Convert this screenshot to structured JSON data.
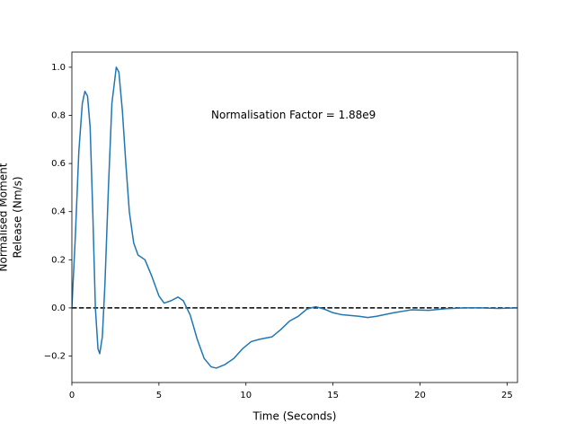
{
  "chart_data": {
    "type": "line",
    "x_label": "Time (Seconds)",
    "y_label": [
      "Normalised Moment",
      "Release (Nm/s)"
    ],
    "annotation": {
      "text": "Normalisation Factor = 1.88e9",
      "x": 8,
      "y": 0.8
    },
    "hline": {
      "y": 0,
      "color": "#000000",
      "style": "dashed"
    },
    "xlim": [
      0,
      25.6
    ],
    "ylim": [
      -0.31,
      1.063
    ],
    "xticks": [
      0,
      5,
      10,
      15,
      20,
      25
    ],
    "yticks": [
      {
        "value": -0.2,
        "label": "−0.2"
      },
      {
        "value": 0,
        "label": "0.0"
      },
      {
        "value": 0.2,
        "label": "0.2"
      },
      {
        "value": 0.4,
        "label": "0.4"
      },
      {
        "value": 0.6,
        "label": "0.6"
      },
      {
        "value": 0.8,
        "label": "0.8"
      },
      {
        "value": 1.0,
        "label": "1.0"
      }
    ],
    "series": [
      {
        "color": "#1f77b4",
        "x": [
          0,
          0.2,
          0.4,
          0.6,
          0.75,
          0.9,
          1.05,
          1.2,
          1.35,
          1.5,
          1.6,
          1.75,
          1.9,
          2.1,
          2.3,
          2.55,
          2.7,
          2.9,
          3.1,
          3.3,
          3.55,
          3.8,
          4.2,
          4.6,
          5.0,
          5.3,
          5.7,
          6.1,
          6.4,
          6.8,
          7.2,
          7.6,
          8.0,
          8.3,
          8.8,
          9.3,
          9.8,
          10.3,
          10.8,
          11.5,
          12.0,
          12.5,
          13.0,
          13.5,
          14.0,
          14.5,
          15.0,
          15.5,
          16.5,
          17.0,
          17.5,
          18.5,
          19.5,
          20.5,
          21.5,
          22.5,
          23.5,
          24.5,
          25.6
        ],
        "values": [
          0,
          0.3,
          0.65,
          0.85,
          0.9,
          0.88,
          0.75,
          0.4,
          0.0,
          -0.17,
          -0.19,
          -0.12,
          0.1,
          0.5,
          0.85,
          1.0,
          0.98,
          0.82,
          0.6,
          0.4,
          0.27,
          0.22,
          0.2,
          0.13,
          0.05,
          0.02,
          0.03,
          0.045,
          0.03,
          -0.03,
          -0.13,
          -0.21,
          -0.245,
          -0.25,
          -0.235,
          -0.21,
          -0.17,
          -0.14,
          -0.13,
          -0.12,
          -0.09,
          -0.055,
          -0.035,
          -0.005,
          0.005,
          -0.005,
          -0.02,
          -0.028,
          -0.035,
          -0.04,
          -0.035,
          -0.02,
          -0.008,
          -0.01,
          -0.003,
          0.0,
          0.0,
          -0.002,
          0.0
        ]
      }
    ]
  }
}
